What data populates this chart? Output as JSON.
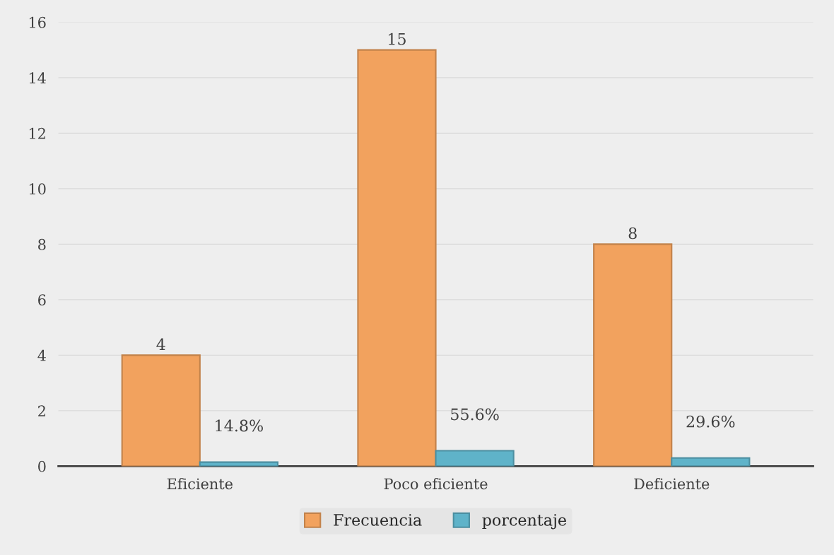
{
  "chart_data": {
    "type": "bar",
    "categories": [
      "Eficiente",
      "Poco eficiente",
      "Deficiente"
    ],
    "series": [
      {
        "name": "Frecuencia",
        "color": "#f2a25e",
        "values": [
          4,
          15,
          8
        ],
        "value_labels": [
          "4",
          "15",
          "8"
        ]
      },
      {
        "name": "porcentaje",
        "color": "#5fb3c9",
        "values": [
          0.148,
          0.556,
          0.296
        ],
        "value_labels": [
          "14.8%",
          "55.6%",
          "29.6%"
        ]
      }
    ],
    "ylim": [
      0,
      16
    ],
    "yticks": [
      0,
      2,
      4,
      6,
      8,
      10,
      12,
      14,
      16
    ],
    "grid": "y",
    "legend": "bottom"
  }
}
